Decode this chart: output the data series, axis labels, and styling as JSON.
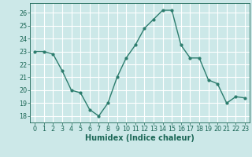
{
  "x": [
    0,
    1,
    2,
    3,
    4,
    5,
    6,
    7,
    8,
    9,
    10,
    11,
    12,
    13,
    14,
    15,
    16,
    17,
    18,
    19,
    20,
    21,
    22,
    23
  ],
  "y": [
    23.0,
    23.0,
    22.8,
    21.5,
    20.0,
    19.8,
    18.5,
    18.0,
    19.0,
    21.0,
    22.5,
    23.5,
    24.8,
    25.5,
    26.2,
    26.2,
    23.5,
    22.5,
    22.5,
    20.8,
    20.5,
    19.0,
    19.5,
    19.4
  ],
  "line_color": "#2d7d6e",
  "marker": "o",
  "marker_size": 2.0,
  "bg_color": "#cce8e8",
  "grid_color": "#ffffff",
  "xlabel": "Humidex (Indice chaleur)",
  "xlim": [
    -0.5,
    23.5
  ],
  "ylim": [
    17.5,
    26.75
  ],
  "yticks": [
    18,
    19,
    20,
    21,
    22,
    23,
    24,
    25,
    26
  ],
  "xticks": [
    0,
    1,
    2,
    3,
    4,
    5,
    6,
    7,
    8,
    9,
    10,
    11,
    12,
    13,
    14,
    15,
    16,
    17,
    18,
    19,
    20,
    21,
    22,
    23
  ],
  "tick_color": "#1a6655",
  "tick_fontsize": 5.8,
  "xlabel_fontsize": 7.0,
  "line_width": 1.0
}
